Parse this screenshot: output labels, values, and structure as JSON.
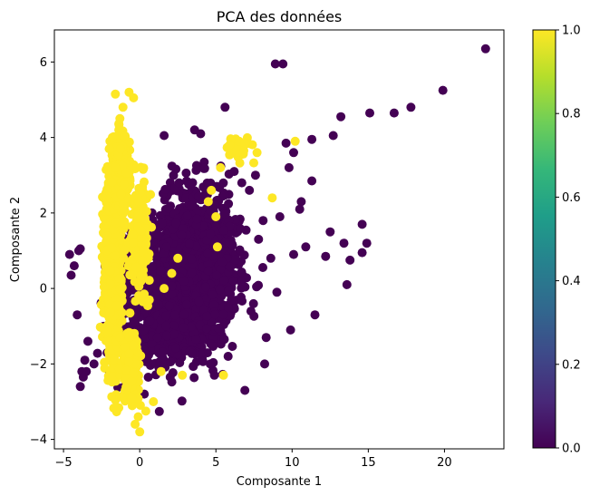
{
  "chart_data": {
    "type": "scatter",
    "title": "PCA des données",
    "xlabel": "Composante 1",
    "ylabel": "Composante 2",
    "xlim": [
      -5.6,
      23.9
    ],
    "ylim": [
      -4.25,
      6.85
    ],
    "xticks": [
      -5,
      0,
      5,
      10,
      15,
      20
    ],
    "yticks": [
      -4,
      -2,
      0,
      2,
      4,
      6
    ],
    "colorbar": {
      "ticks": [
        0.0,
        0.2,
        0.4,
        0.6,
        0.8,
        1.0
      ],
      "tick_labels": [
        "0.0",
        "0.2",
        "0.4",
        "0.6",
        "0.8",
        "1.0"
      ],
      "range": [
        0,
        1
      ],
      "colormap": "viridis",
      "colormap_stops": [
        "#440154",
        "#482878",
        "#3e4989",
        "#31688e",
        "#26828e",
        "#1f9e89",
        "#35b779",
        "#6ece58",
        "#b5de2b",
        "#fde725"
      ]
    },
    "grid": false,
    "point_colors": {
      "class_0": "#440154",
      "class_1": "#fde725"
    },
    "series": [
      {
        "class_value": 0,
        "points": [
          [
            22.7,
            6.35
          ],
          [
            19.9,
            5.25
          ],
          [
            17.8,
            4.8
          ],
          [
            16.7,
            4.65
          ],
          [
            15.1,
            4.65
          ],
          [
            13.2,
            4.55
          ],
          [
            9.4,
            5.95
          ],
          [
            8.9,
            5.95
          ],
          [
            12.7,
            4.05
          ],
          [
            11.3,
            3.95
          ],
          [
            10.1,
            3.6
          ],
          [
            9.8,
            3.2
          ],
          [
            11.3,
            2.85
          ],
          [
            10.5,
            2.1
          ],
          [
            14.6,
            1.7
          ],
          [
            12.5,
            1.5
          ],
          [
            14.9,
            1.2
          ],
          [
            13.4,
            1.2
          ],
          [
            14.6,
            0.95
          ],
          [
            12.2,
            0.85
          ],
          [
            13.8,
            0.75
          ],
          [
            10.9,
            1.1
          ],
          [
            10.1,
            0.9
          ],
          [
            13.6,
            0.1
          ],
          [
            11.5,
            -0.7
          ],
          [
            9.9,
            -1.1
          ],
          [
            8.2,
            -2.0
          ],
          [
            6.9,
            -2.7
          ],
          [
            4.9,
            -2.3
          ],
          [
            8.3,
            -1.3
          ],
          [
            5.6,
            4.8
          ],
          [
            4.0,
            4.1
          ],
          [
            1.6,
            4.05
          ],
          [
            9.6,
            3.85
          ],
          [
            9.2,
            1.9
          ],
          [
            10.6,
            2.3
          ],
          [
            -4.6,
            0.9
          ],
          [
            -4.5,
            0.35
          ],
          [
            -4.3,
            0.6
          ],
          [
            -4.0,
            1.0
          ],
          [
            -3.9,
            1.05
          ],
          [
            -4.1,
            -0.7
          ],
          [
            -3.8,
            -2.2
          ],
          [
            -3.9,
            -2.6
          ],
          [
            -3.6,
            -1.9
          ],
          [
            -3.7,
            -2.35
          ],
          [
            -3.5,
            -2.2
          ],
          [
            -3.4,
            -1.4
          ],
          [
            -3.0,
            -2.0
          ],
          [
            -1.0,
            -2.6
          ],
          [
            0.3,
            -2.8
          ],
          [
            2.0,
            -2.35
          ],
          [
            3.6,
            4.2
          ],
          [
            6.2,
            3.1
          ],
          [
            7.2,
            2.6
          ],
          [
            8.1,
            1.8
          ],
          [
            8.6,
            0.8
          ],
          [
            9.0,
            -0.1
          ],
          [
            7.6,
            3.0
          ],
          [
            6.7,
            2.8
          ],
          [
            5.8,
            -1.8
          ],
          [
            7.3,
            -0.6
          ]
        ],
        "clusters": [
          {
            "center": [
              3.5,
              0.2
            ],
            "spread": [
              2.6,
              1.5
            ],
            "count": 1300
          },
          {
            "center": [
              3.5,
              1.6
            ],
            "spread": [
              2.2,
              1.2
            ],
            "count": 450
          },
          {
            "center": [
              2.0,
              -1.2
            ],
            "spread": [
              2.2,
              0.8
            ],
            "count": 300
          },
          {
            "center": [
              -1.0,
              0.0
            ],
            "spread": [
              1.2,
              1.8
            ],
            "count": 180
          }
        ]
      },
      {
        "class_value": 1,
        "points": [
          [
            -1.6,
            5.15
          ],
          [
            -0.7,
            5.2
          ],
          [
            -0.4,
            5.05
          ],
          [
            -1.1,
            4.8
          ],
          [
            -1.3,
            4.5
          ],
          [
            0.0,
            -3.8
          ],
          [
            -0.3,
            -3.6
          ],
          [
            -0.1,
            -3.4
          ],
          [
            0.4,
            -3.25
          ],
          [
            0.9,
            -3.0
          ],
          [
            5.5,
            -2.3
          ],
          [
            10.2,
            3.9
          ],
          [
            8.7,
            2.4
          ],
          [
            5.9,
            3.8
          ],
          [
            6.9,
            3.85
          ],
          [
            7.7,
            3.6
          ],
          [
            5.3,
            3.2
          ],
          [
            4.7,
            2.6
          ],
          [
            5.0,
            1.9
          ],
          [
            5.1,
            1.1
          ],
          [
            4.5,
            2.3
          ],
          [
            2.5,
            0.8
          ],
          [
            2.1,
            0.4
          ],
          [
            1.6,
            0.0
          ],
          [
            2.8,
            -2.3
          ],
          [
            1.4,
            -2.2
          ],
          [
            -2.0,
            3.7
          ],
          [
            -1.8,
            4.0
          ]
        ],
        "clusters": [
          {
            "center": [
              -1.75,
              0.6
            ],
            "spread": [
              0.42,
              2.0
            ],
            "count": 1500
          },
          {
            "center": [
              -1.2,
              3.0
            ],
            "spread": [
              0.5,
              0.9
            ],
            "count": 300
          },
          {
            "center": [
              -0.6,
              -2.0
            ],
            "spread": [
              0.5,
              0.8
            ],
            "count": 250
          },
          {
            "center": [
              0.0,
              1.5
            ],
            "spread": [
              0.6,
              1.2
            ],
            "count": 180
          },
          {
            "center": [
              6.5,
              3.7
            ],
            "spread": [
              0.9,
              0.25
            ],
            "count": 35
          }
        ]
      }
    ]
  }
}
